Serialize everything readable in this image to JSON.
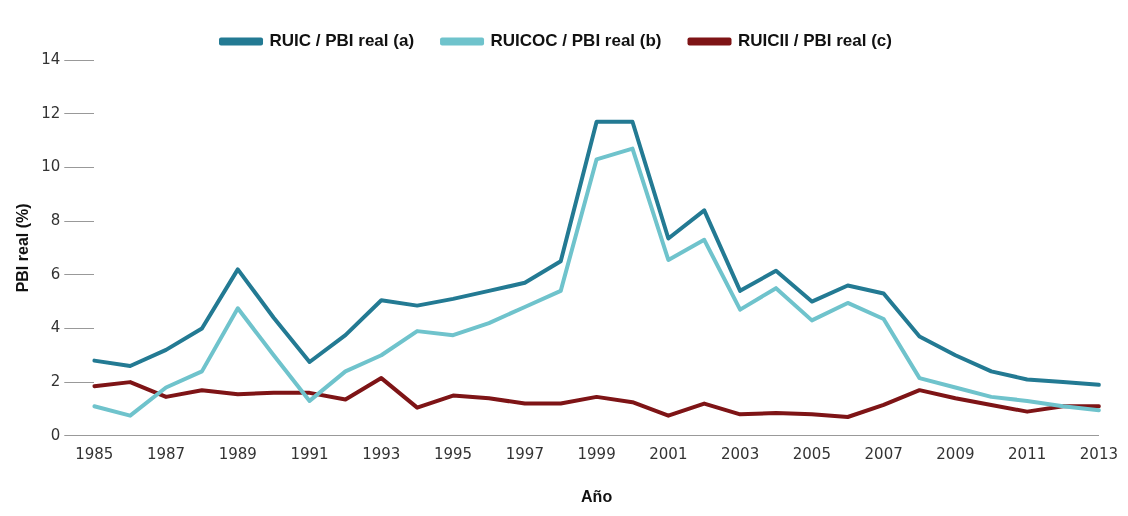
{
  "chart_data": {
    "type": "line",
    "xlabel": "Año",
    "ylabel": "PBI real (%)",
    "categories": [
      "1985",
      null,
      "1987",
      null,
      "1989",
      null,
      "1991",
      null,
      "1993",
      null,
      "1995",
      null,
      "1997",
      null,
      "1999",
      null,
      "2001",
      null,
      "2003",
      null,
      "2005",
      null,
      "2007",
      null,
      "2009",
      null,
      "2011",
      null,
      "2013"
    ],
    "series": [
      {
        "name": "RUIC / PBI real (a)",
        "color": "#237a93",
        "values": [
          2.8,
          2.6,
          3.2,
          4.0,
          6.2,
          4.4,
          2.75,
          3.75,
          5.05,
          4.85,
          5.1,
          5.4,
          5.7,
          6.5,
          11.7,
          11.7,
          7.35,
          8.4,
          5.4,
          6.15,
          5.0,
          5.6,
          5.3,
          3.7,
          3.0,
          2.4,
          2.1,
          2.0,
          1.9
        ]
      },
      {
        "name": "RUICOC / PBI real (b)",
        "color": "#6fc3cc",
        "values": [
          1.1,
          0.75,
          1.8,
          2.4,
          4.75,
          3.0,
          1.3,
          2.4,
          3.0,
          3.9,
          3.75,
          4.2,
          4.8,
          5.4,
          10.3,
          10.7,
          6.55,
          7.3,
          4.7,
          5.5,
          4.3,
          4.95,
          4.35,
          2.15,
          1.8,
          1.45,
          1.3,
          1.1,
          0.95
        ]
      },
      {
        "name": "RUICII / PBI real (c)",
        "color": "#7e1416",
        "values": [
          1.85,
          2.0,
          1.45,
          1.7,
          1.55,
          1.6,
          1.6,
          1.35,
          2.15,
          1.05,
          1.5,
          1.4,
          1.2,
          1.2,
          1.45,
          1.25,
          0.75,
          1.2,
          0.8,
          0.85,
          0.8,
          0.7,
          1.15,
          1.7,
          1.4,
          1.15,
          0.9,
          1.1,
          1.1
        ]
      }
    ],
    "ylim": [
      0,
      14
    ],
    "yticks": [
      0,
      2,
      4,
      6,
      8,
      10,
      12,
      14
    ],
    "grid": false,
    "legend": "top",
    "marker": "none",
    "line_style": "solid"
  }
}
